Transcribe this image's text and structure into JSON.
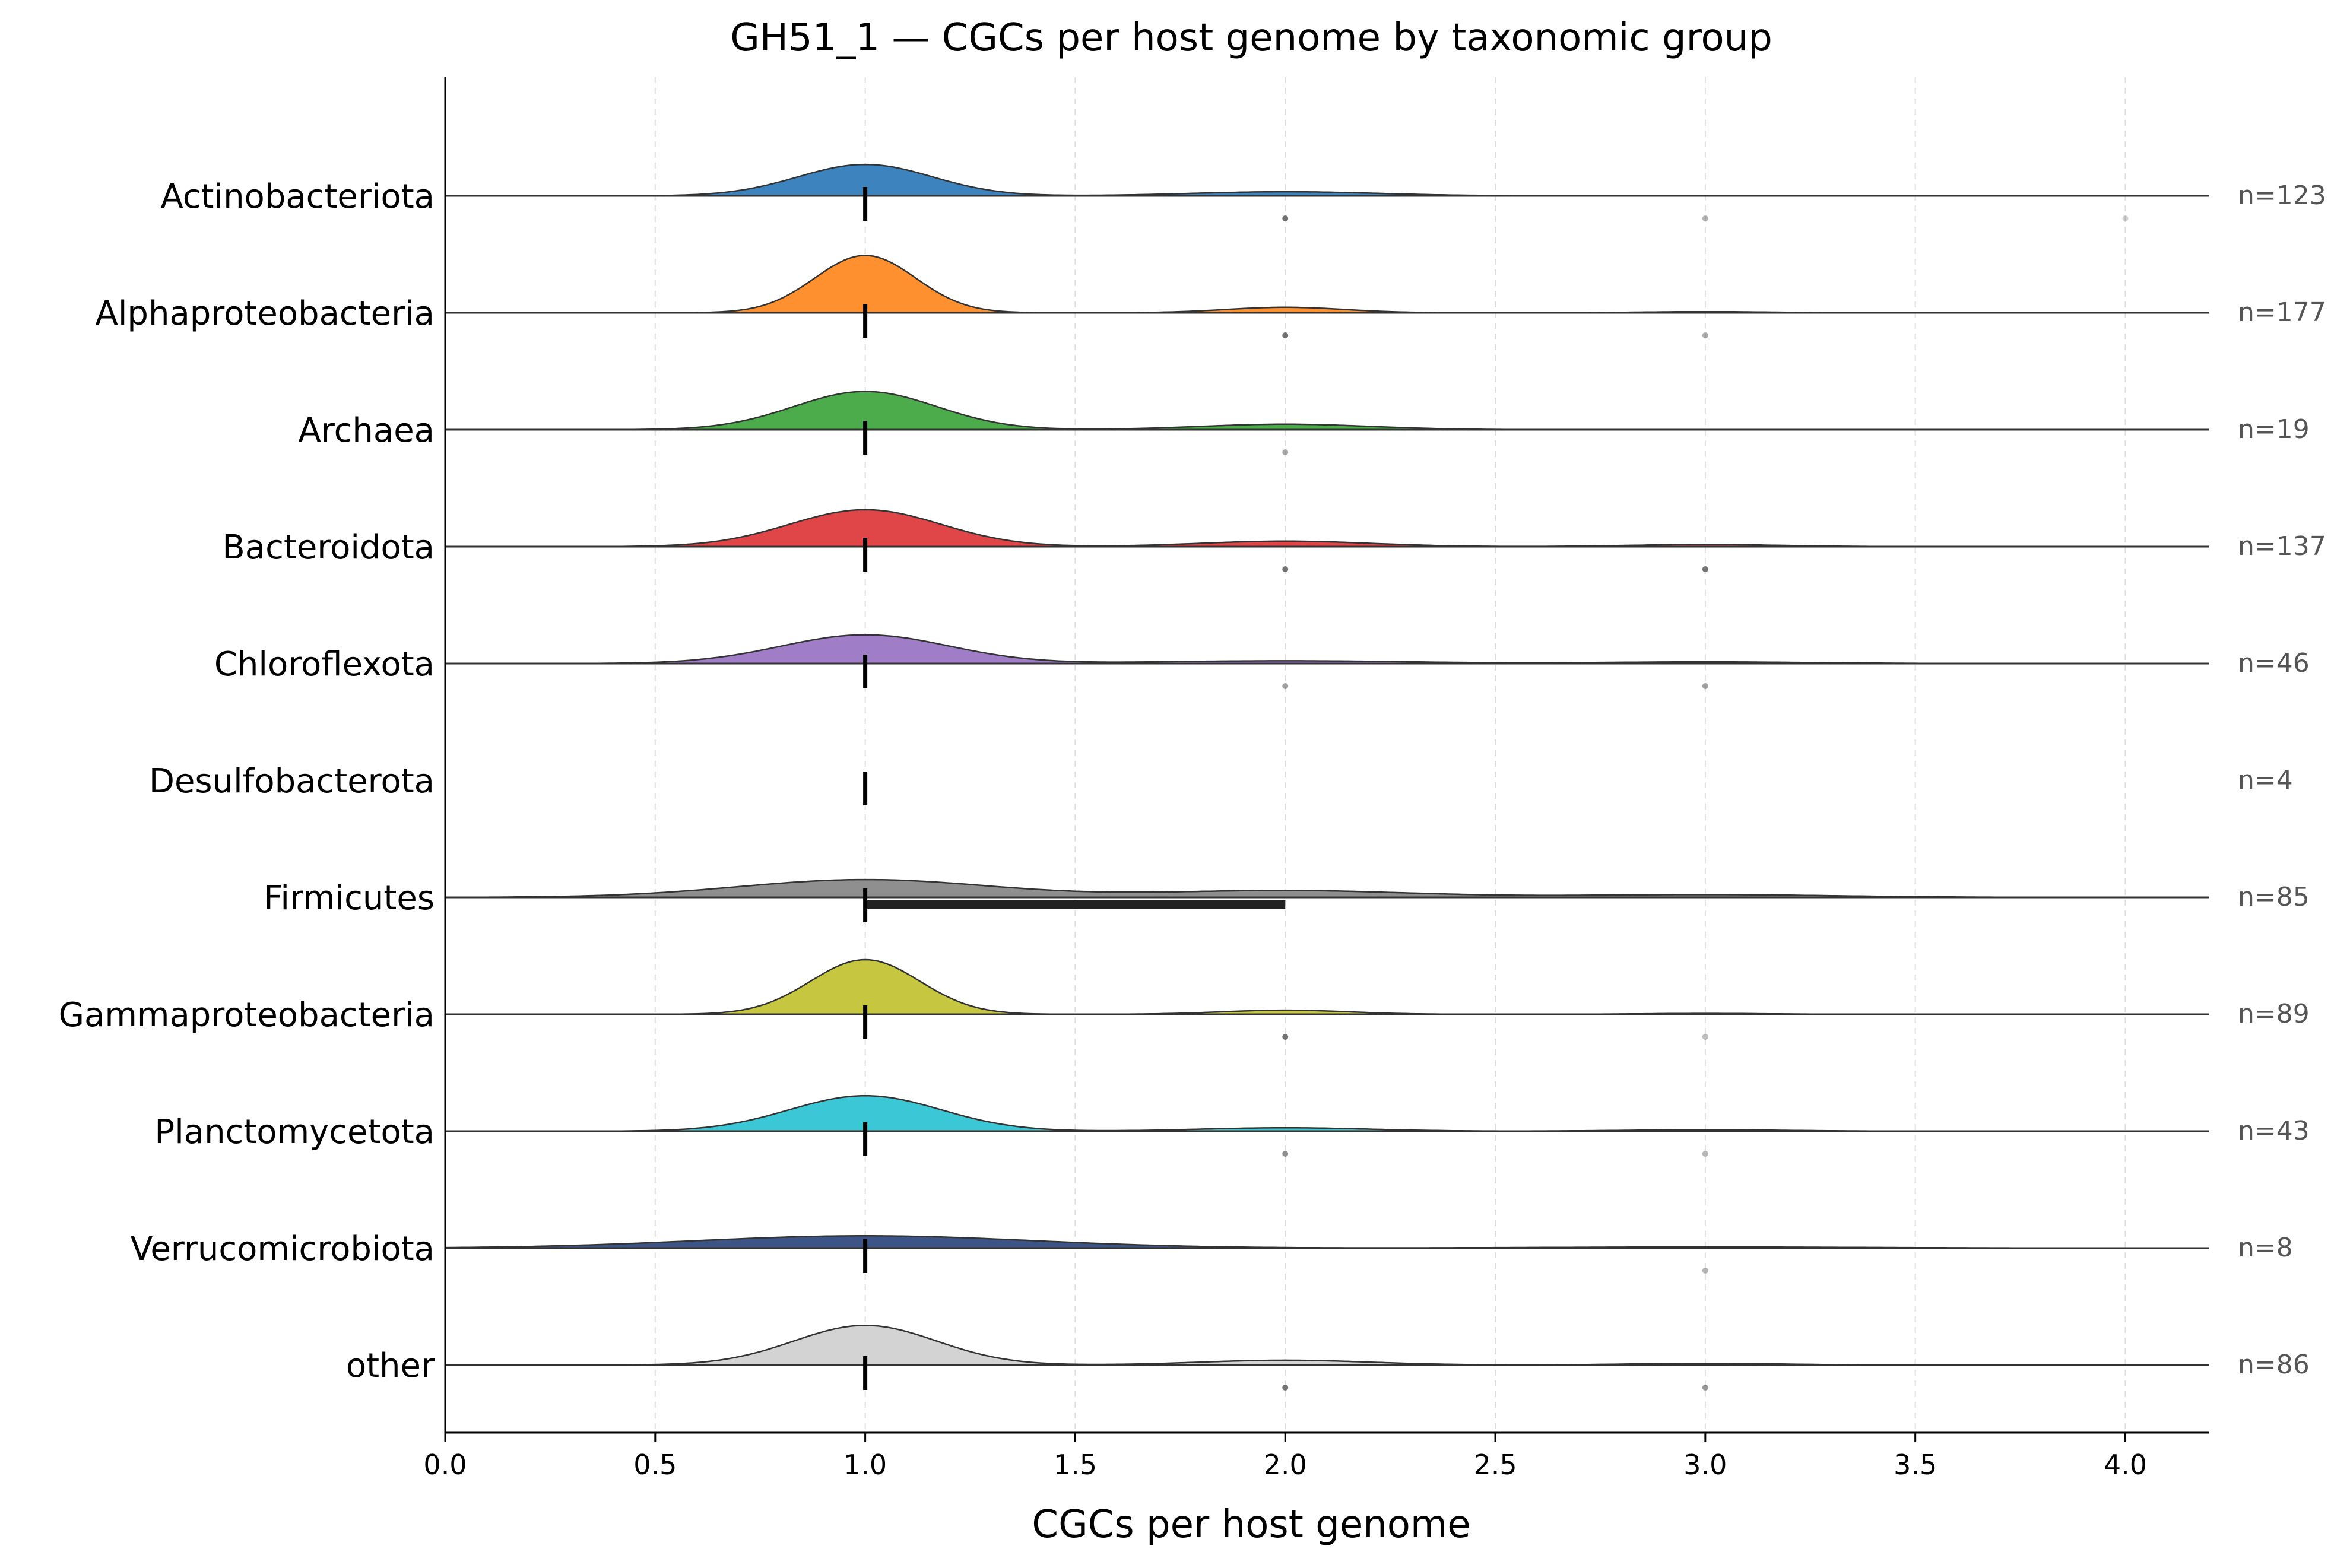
{
  "chart_data": {
    "type": "ridgeline",
    "title": "GH51_1 — CGCs per host genome by taxonomic group",
    "xlabel": "CGCs per host genome",
    "ylabel": "",
    "xlim": [
      0.0,
      4.2
    ],
    "xticks": [
      "0.0",
      "0.5",
      "1.0",
      "1.5",
      "2.0",
      "2.5",
      "3.0",
      "3.5",
      "4.0"
    ],
    "grid": "vertical dashed",
    "groups": [
      {
        "name": "Actinobacteriota",
        "n_label": "n=123",
        "color": "#3d83bd",
        "median": 1.0,
        "density": [
          {
            "mu": 1.0,
            "sigma": 0.16,
            "h": 0.23
          },
          {
            "mu": 2.0,
            "sigma": 0.22,
            "h": 0.03
          }
        ],
        "outliers": [
          {
            "x": 2.0,
            "o": 0.75
          },
          {
            "x": 3.0,
            "o": 0.4
          },
          {
            "x": 4.0,
            "o": 0.25
          }
        ]
      },
      {
        "name": "Alphaproteobacteria",
        "n_label": "n=177",
        "color": "#ff902f",
        "median": 1.0,
        "density": [
          {
            "mu": 1.0,
            "sigma": 0.12,
            "h": 0.42
          },
          {
            "mu": 2.0,
            "sigma": 0.14,
            "h": 0.04
          },
          {
            "mu": 3.0,
            "sigma": 0.15,
            "h": 0.008
          }
        ],
        "outliers": [
          {
            "x": 2.0,
            "o": 0.75
          },
          {
            "x": 3.0,
            "o": 0.45
          }
        ]
      },
      {
        "name": "Archaea",
        "n_label": "n=19",
        "color": "#4cac4c",
        "median": 1.0,
        "density": [
          {
            "mu": 1.0,
            "sigma": 0.17,
            "h": 0.28
          },
          {
            "mu": 2.0,
            "sigma": 0.2,
            "h": 0.04
          }
        ],
        "outliers": [
          {
            "x": 2.0,
            "o": 0.45
          }
        ]
      },
      {
        "name": "Bacteroidota",
        "n_label": "n=137",
        "color": "#e04548",
        "median": 1.0,
        "density": [
          {
            "mu": 1.0,
            "sigma": 0.18,
            "h": 0.27
          },
          {
            "mu": 2.0,
            "sigma": 0.2,
            "h": 0.04
          },
          {
            "mu": 3.0,
            "sigma": 0.18,
            "h": 0.015
          }
        ],
        "outliers": [
          {
            "x": 2.0,
            "o": 0.75
          },
          {
            "x": 3.0,
            "o": 0.75
          }
        ]
      },
      {
        "name": "Chloroflexota",
        "n_label": "n=46",
        "color": "#a07dc7",
        "median": 1.0,
        "density": [
          {
            "mu": 1.0,
            "sigma": 0.2,
            "h": 0.21
          },
          {
            "mu": 2.0,
            "sigma": 0.3,
            "h": 0.02
          },
          {
            "mu": 3.0,
            "sigma": 0.25,
            "h": 0.012
          }
        ],
        "outliers": [
          {
            "x": 2.0,
            "o": 0.5
          },
          {
            "x": 3.0,
            "o": 0.5
          }
        ]
      },
      {
        "name": "Desulfobacterota",
        "n_label": "n=4",
        "color": "#8c564b",
        "median": 1.0,
        "density": [],
        "outliers": []
      },
      {
        "name": "Firmicutes",
        "n_label": "n=85",
        "color": "#8f8f8f",
        "median": 1.0,
        "iqr": [
          1.0,
          2.0
        ],
        "density": [
          {
            "mu": 1.0,
            "sigma": 0.3,
            "h": 0.13
          },
          {
            "mu": 2.0,
            "sigma": 0.3,
            "h": 0.05
          },
          {
            "mu": 3.0,
            "sigma": 0.3,
            "h": 0.02
          }
        ],
        "outliers": []
      },
      {
        "name": "Gammaproteobacteria",
        "n_label": "n=89",
        "color": "#c7c641",
        "median": 1.0,
        "density": [
          {
            "mu": 1.0,
            "sigma": 0.13,
            "h": 0.4
          },
          {
            "mu": 2.0,
            "sigma": 0.15,
            "h": 0.03
          },
          {
            "mu": 3.0,
            "sigma": 0.15,
            "h": 0.006
          }
        ],
        "outliers": [
          {
            "x": 2.0,
            "o": 0.75
          },
          {
            "x": 3.0,
            "o": 0.35
          }
        ]
      },
      {
        "name": "Planctomycetota",
        "n_label": "n=43",
        "color": "#3cc7d6",
        "median": 1.0,
        "density": [
          {
            "mu": 1.0,
            "sigma": 0.18,
            "h": 0.26
          },
          {
            "mu": 2.0,
            "sigma": 0.2,
            "h": 0.025
          },
          {
            "mu": 3.0,
            "sigma": 0.2,
            "h": 0.01
          }
        ],
        "outliers": [
          {
            "x": 2.0,
            "o": 0.6
          },
          {
            "x": 3.0,
            "o": 0.4
          }
        ]
      },
      {
        "name": "Verrucomicrobiota",
        "n_label": "n=8",
        "color": "#3c5586",
        "median": 1.0,
        "density": [
          {
            "mu": 1.0,
            "sigma": 0.4,
            "h": 0.09
          },
          {
            "mu": 3.0,
            "sigma": 0.4,
            "h": 0.008
          }
        ],
        "outliers": [
          {
            "x": 3.0,
            "o": 0.4
          }
        ]
      },
      {
        "name": "other",
        "n_label": "n=86",
        "color": "#d3d3d3",
        "median": 1.0,
        "density": [
          {
            "mu": 1.0,
            "sigma": 0.17,
            "h": 0.29
          },
          {
            "mu": 2.0,
            "sigma": 0.2,
            "h": 0.035
          },
          {
            "mu": 3.0,
            "sigma": 0.18,
            "h": 0.012
          }
        ],
        "outliers": [
          {
            "x": 2.0,
            "o": 0.75
          },
          {
            "x": 3.0,
            "o": 0.55
          }
        ]
      }
    ]
  }
}
